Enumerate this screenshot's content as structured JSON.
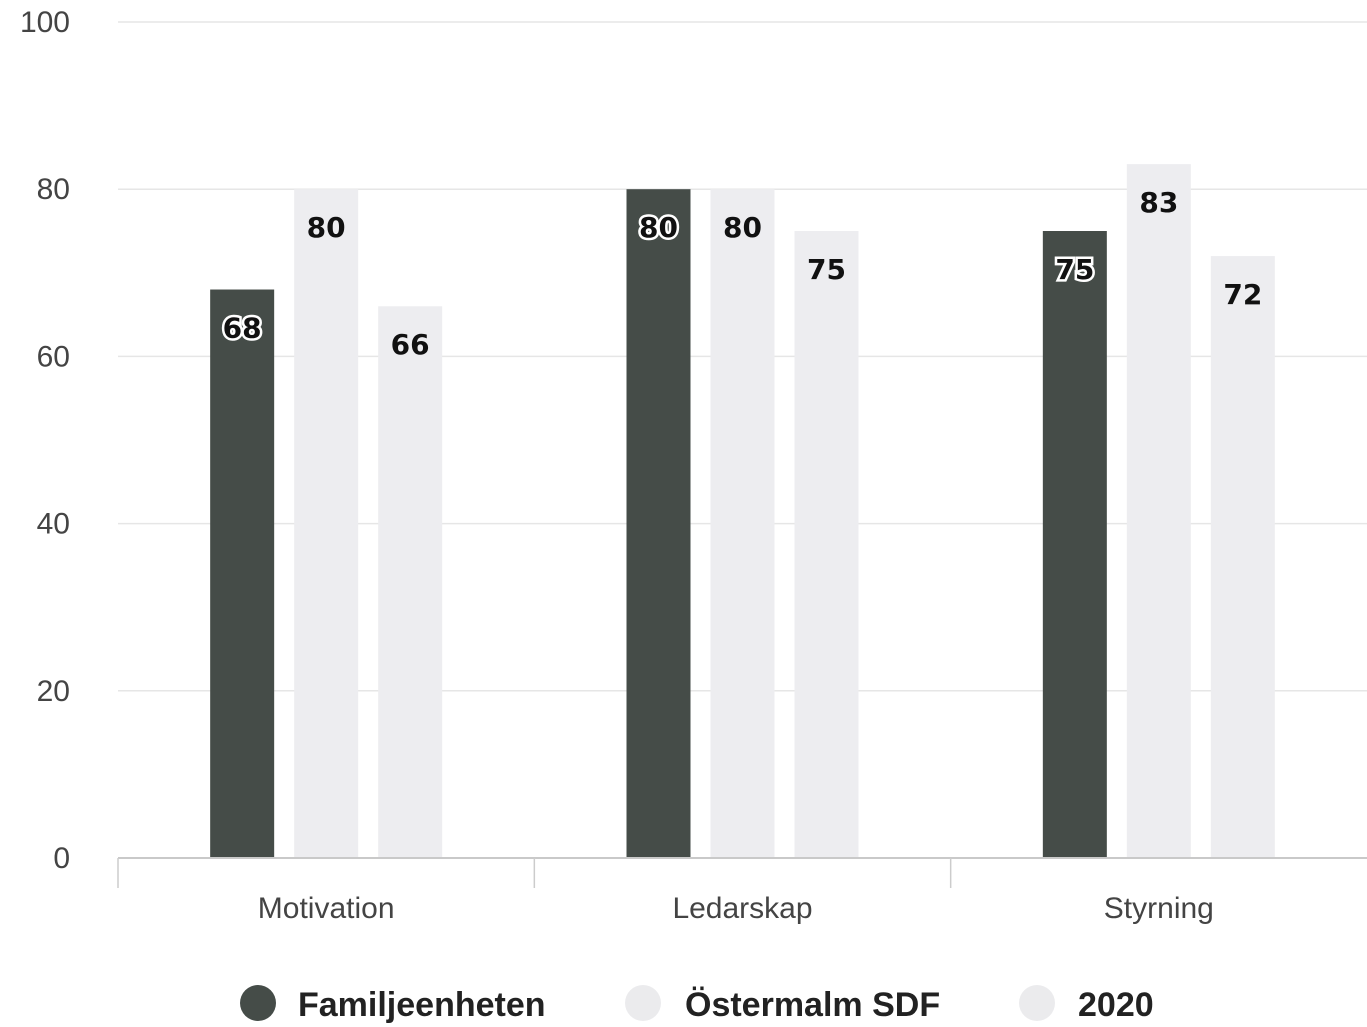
{
  "chart_data": {
    "type": "bar",
    "categories": [
      "Motivation",
      "Ledarskap",
      "Styrning"
    ],
    "series": [
      {
        "name": "Familjeenheten",
        "values": [
          68,
          80,
          75
        ],
        "color": "#454c48"
      },
      {
        "name": "Östermalm SDF",
        "values": [
          80,
          80,
          83
        ],
        "color": "#ededf0"
      },
      {
        "name": "2020",
        "values": [
          66,
          75,
          72
        ],
        "color": "#ededf0"
      }
    ],
    "ylim": [
      0,
      100
    ],
    "yticks": [
      0,
      20,
      40,
      60,
      80,
      100
    ],
    "grid": true,
    "legend_position": "bottom",
    "data_labels": true
  }
}
